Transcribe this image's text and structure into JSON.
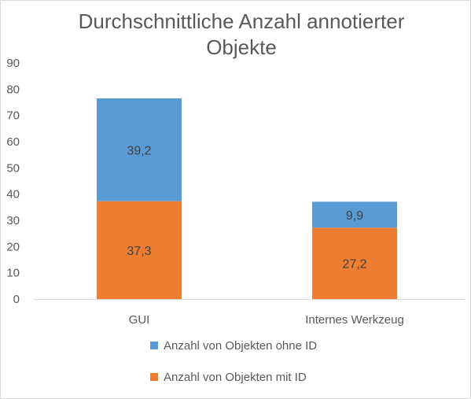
{
  "chart_data": {
    "type": "bar",
    "stacked": true,
    "title": "Durchschnittliche Anzahl annotierter Objekte",
    "title_lines": [
      "Durchschnittliche Anzahl annotierter",
      "Objekte"
    ],
    "categories": [
      "GUI",
      "Internes Werkzeug"
    ],
    "series": [
      {
        "name": "Anzahl von Objekten mit ID",
        "values": [
          37.3,
          27.2
        ],
        "labels": [
          "37,3",
          "27,2"
        ],
        "color": "#ed7d31"
      },
      {
        "name": "Anzahl von Objekten ohne ID",
        "values": [
          39.2,
          9.9
        ],
        "labels": [
          "39,2",
          "9,9"
        ],
        "color": "#5b9bd5"
      }
    ],
    "ylim": [
      0,
      90
    ],
    "yticks": [
      0,
      10,
      20,
      30,
      40,
      50,
      60,
      70,
      80,
      90
    ],
    "grid": false,
    "legend_position": "bottom",
    "legend_order": [
      "Anzahl von Objekten ohne ID",
      "Anzahl von Objekten mit ID"
    ],
    "xlabel": "",
    "ylabel": ""
  }
}
